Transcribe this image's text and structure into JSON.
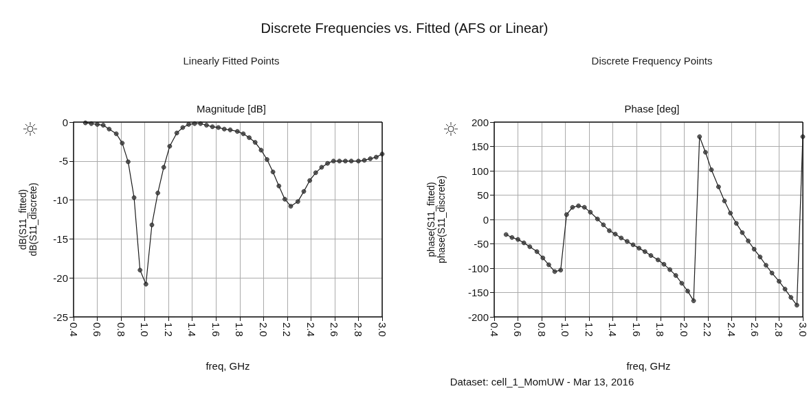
{
  "chart_data": [
    {
      "type": "line",
      "title": "Magnitude [dB]",
      "subtitle": "Linearly Fitted Points",
      "xlabel": "freq, GHz",
      "ylabel": "dB(S11_fitted)\ndB(S11_discrete)",
      "annotations": [
        "Discrete Frequencies vs. Fitted (AFS or Linear)"
      ],
      "x": [
        0.5,
        0.55,
        0.6,
        0.65,
        0.7,
        0.76,
        0.81,
        0.86,
        0.91,
        0.96,
        1.01,
        1.06,
        1.11,
        1.16,
        1.21,
        1.27,
        1.32,
        1.37,
        1.42,
        1.47,
        1.52,
        1.57,
        1.62,
        1.67,
        1.72,
        1.78,
        1.83,
        1.88,
        1.93,
        1.98,
        2.03,
        2.08,
        2.13,
        2.18,
        2.23,
        2.29,
        2.34,
        2.39,
        2.44,
        2.49,
        2.54,
        2.59,
        2.64,
        2.69,
        2.74,
        2.8,
        2.85,
        2.9,
        2.95,
        3.0
      ],
      "series": [
        {
          "marker": "none",
          "color": "#1a1a1a",
          "values": [
            -0.1,
            -0.2,
            -0.3,
            -0.4,
            -0.9,
            -1.5,
            -2.7,
            -5.1,
            -9.7,
            -19.0,
            -20.8,
            -13.2,
            -9.1,
            -5.8,
            -3.1,
            -1.4,
            -0.7,
            -0.3,
            -0.2,
            -0.2,
            -0.4,
            -0.6,
            -0.7,
            -0.9,
            -1.0,
            -1.2,
            -1.5,
            -2.0,
            -2.6,
            -3.6,
            -4.8,
            -6.4,
            -8.2,
            -9.9,
            -10.8,
            -10.2,
            -8.9,
            -7.5,
            -6.5,
            -5.8,
            -5.3,
            -5.0,
            -5.0,
            -5.0,
            -5.0,
            -5.0,
            -4.9,
            -4.7,
            -4.5,
            -4.1
          ]
        },
        {
          "type": "scatter",
          "marker": "circle",
          "color": "#3a3a3a",
          "values": [
            -0.1,
            -0.2,
            -0.3,
            -0.4,
            -0.9,
            -1.5,
            -2.7,
            -5.1,
            -9.7,
            -19.0,
            -20.8,
            -13.2,
            -9.1,
            -5.8,
            -3.1,
            -1.4,
            -0.7,
            -0.3,
            -0.2,
            -0.2,
            -0.4,
            -0.6,
            -0.7,
            -0.9,
            -1.0,
            -1.2,
            -1.5,
            -2.0,
            -2.6,
            -3.6,
            -4.8,
            -6.4,
            -8.2,
            -9.9,
            -10.8,
            -10.2,
            -8.9,
            -7.5,
            -6.5,
            -5.8,
            -5.3,
            -5.0,
            -5.0,
            -5.0,
            -5.0,
            -5.0,
            -4.9,
            -4.7,
            -4.5,
            -4.1
          ]
        }
      ],
      "xlim": [
        0.4,
        3.0
      ],
      "xticks": [
        0.4,
        0.6,
        0.8,
        {
          "value": 1.0,
          "label": "1.0"
        },
        1.2,
        1.4,
        1.6,
        1.8,
        {
          "value": 2.0,
          "label": "2.0"
        },
        2.2,
        2.4,
        2.6,
        2.8,
        {
          "value": 3.0,
          "label": "3.0"
        }
      ],
      "ylim": [
        -25,
        0
      ],
      "yticks": [
        -25,
        -20,
        -15,
        -10,
        -5,
        0
      ],
      "grid": true
    },
    {
      "type": "line",
      "title": "Phase [deg]",
      "subtitle": "Discrete Frequency Points",
      "xlabel": "freq, GHz",
      "ylabel": "phase(S11_fitted)\nphase(S11_discrete)",
      "annotations": [
        "Dataset: cell_1_MomUW - Mar 13, 2016"
      ],
      "x": [
        0.5,
        0.55,
        0.6,
        0.65,
        0.7,
        0.76,
        0.81,
        0.86,
        0.91,
        0.96,
        1.01,
        1.06,
        1.11,
        1.16,
        1.21,
        1.27,
        1.32,
        1.37,
        1.42,
        1.47,
        1.52,
        1.57,
        1.62,
        1.67,
        1.72,
        1.78,
        1.83,
        1.88,
        1.93,
        1.98,
        2.03,
        2.08,
        2.13,
        2.18,
        2.23,
        2.29,
        2.34,
        2.39,
        2.44,
        2.49,
        2.54,
        2.59,
        2.64,
        2.69,
        2.74,
        2.8,
        2.85,
        2.9,
        2.95,
        3.0
      ],
      "series": [
        {
          "marker": "none",
          "color": "#1a1a1a",
          "values": [
            -31,
            -37,
            -41,
            -48,
            -56,
            -66,
            -79,
            -93,
            -107,
            -104,
            10,
            25,
            28,
            25,
            15,
            1,
            -11,
            -23,
            -30,
            -38,
            -45,
            -52,
            -59,
            -66,
            -74,
            -83,
            -92,
            -103,
            -115,
            -131,
            -147,
            -167,
            170,
            138,
            102,
            67,
            38,
            13,
            -8,
            -27,
            -44,
            -61,
            -77,
            -94,
            -110,
            -127,
            -143,
            -160,
            -176,
            170
          ]
        },
        {
          "type": "scatter",
          "marker": "circle",
          "color": "#3a3a3a",
          "values": [
            -31,
            -37,
            -41,
            -48,
            -56,
            -66,
            -79,
            -93,
            -107,
            -104,
            10,
            25,
            28,
            25,
            15,
            1,
            -11,
            -23,
            -30,
            -38,
            -45,
            -52,
            -59,
            -66,
            -74,
            -83,
            -92,
            -103,
            -115,
            -131,
            -147,
            -167,
            170,
            138,
            102,
            67,
            38,
            13,
            -8,
            -27,
            -44,
            -61,
            -77,
            -94,
            -110,
            -127,
            -143,
            -160,
            -176,
            170
          ]
        }
      ],
      "xlim": [
        0.4,
        3.0
      ],
      "xticks": [
        0.4,
        0.6,
        0.8,
        {
          "value": 1.0,
          "label": "1.0"
        },
        1.2,
        1.4,
        1.6,
        1.8,
        {
          "value": 2.0,
          "label": "2.0"
        },
        2.2,
        2.4,
        2.6,
        2.8,
        {
          "value": 3.0,
          "label": "3.0"
        }
      ],
      "ylim": [
        -200,
        200
      ],
      "yticks": [
        -200,
        -150,
        -100,
        -50,
        0,
        50,
        100,
        150,
        200
      ],
      "grid": true
    }
  ]
}
